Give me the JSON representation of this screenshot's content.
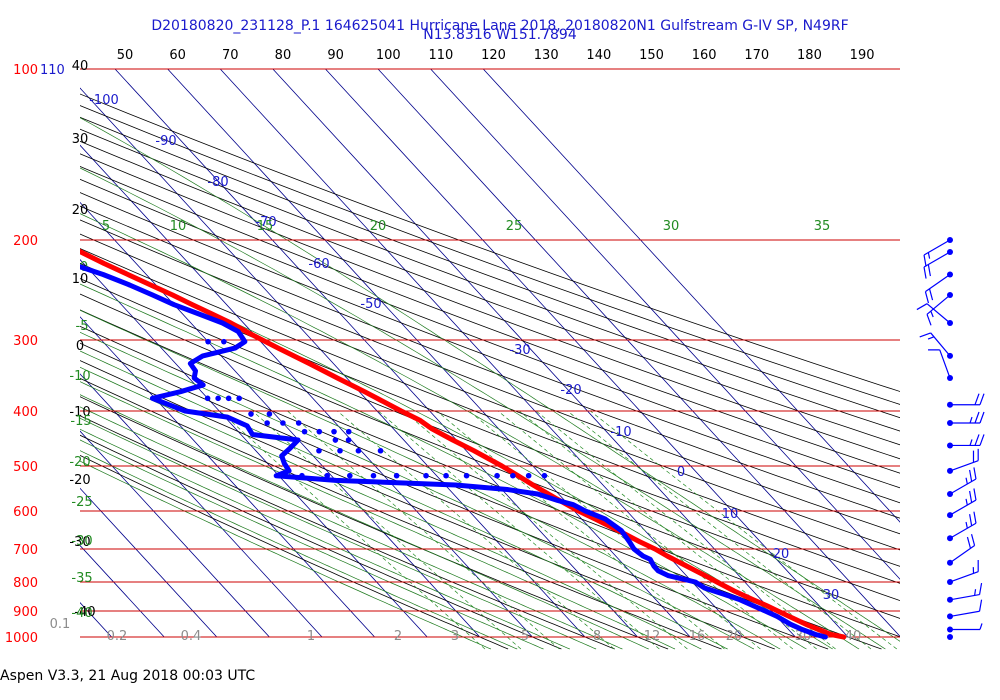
{
  "chart_data": {
    "type": "skew-t",
    "title_line1": "D20180820_231128_P.1 164625041 Hurricane Lane 2018, 20180820N1 Gulfstream G-IV SP, N49RF",
    "title_line2": "N13.8316 W151.7894",
    "colors": {
      "title": "#1a1acc",
      "temperature": "#ff0000",
      "dewpoint": "#0000ff",
      "isobar": "#cc0000",
      "isotherm": "#00008b",
      "dry_adiabat": "#000000",
      "moist_adiabat": "#1e7a1e",
      "mixing_ratio": "#228b22",
      "pressure_label": "#ff0000"
    },
    "top_fahrenheit_ticks": [
      "40",
      "50",
      "60",
      "70",
      "80",
      "90",
      "100",
      "110",
      "120",
      "130",
      "140",
      "150",
      "160",
      "170",
      "180",
      "190"
    ],
    "pressure_levels": [
      {
        "value": 100,
        "label": "100",
        "alt_label": "110"
      },
      {
        "value": 200,
        "label": "200"
      },
      {
        "value": 300,
        "label": "300"
      },
      {
        "value": 400,
        "label": "400"
      },
      {
        "value": 500,
        "label": "500"
      },
      {
        "value": 600,
        "label": "600"
      },
      {
        "value": 700,
        "label": "700"
      },
      {
        "value": 800,
        "label": "800"
      },
      {
        "value": 900,
        "label": "900"
      },
      {
        "value": 1000,
        "label": "1000"
      }
    ],
    "left_temp_labels": [
      "30",
      "20",
      "10",
      "0",
      "-10",
      "-20",
      "-30",
      "-40"
    ],
    "isotherm_labels": [
      "-100",
      "-90",
      "-80",
      "-70",
      "-60",
      "-50",
      "-30",
      "-20",
      "-10",
      "0",
      "10",
      "20",
      "30"
    ],
    "adiabat_labels": [
      "5",
      "10",
      "15",
      "20",
      "25",
      "30",
      "35",
      "0",
      "-5",
      "-10",
      "-15",
      "-20",
      "-25",
      "-30",
      "-35",
      "-40"
    ],
    "mixing_ratio_labels": [
      "0.1",
      "0.2",
      "0.4",
      "1",
      "2",
      "3",
      "5",
      "8",
      "12",
      "16",
      "20",
      "30",
      "40"
    ],
    "temperature_profile": [
      {
        "p": 1000,
        "t": 29.2
      },
      {
        "p": 990,
        "t": 27.2
      },
      {
        "p": 970,
        "t": 25.7
      },
      {
        "p": 950,
        "t": 24.2
      },
      {
        "p": 920,
        "t": 22.4
      },
      {
        "p": 900,
        "t": 21.2
      },
      {
        "p": 880,
        "t": 20.0
      },
      {
        "p": 860,
        "t": 18.5
      },
      {
        "p": 830,
        "t": 16.4
      },
      {
        "p": 800,
        "t": 14.7
      },
      {
        "p": 780,
        "t": 13.6
      },
      {
        "p": 750,
        "t": 11.7
      },
      {
        "p": 720,
        "t": 9.8
      },
      {
        "p": 700,
        "t": 8.7
      },
      {
        "p": 680,
        "t": 7.1
      },
      {
        "p": 650,
        "t": 5.0
      },
      {
        "p": 620,
        "t": 2.6
      },
      {
        "p": 600,
        "t": 0.8
      },
      {
        "p": 570,
        "t": -1.3
      },
      {
        "p": 540,
        "t": -3.3
      },
      {
        "p": 520,
        "t": -4.5
      },
      {
        "p": 500,
        "t": -5.9
      },
      {
        "p": 470,
        "t": -8.5
      },
      {
        "p": 450,
        "t": -10.7
      },
      {
        "p": 430,
        "t": -12.7
      },
      {
        "p": 415,
        "t": -13.5
      },
      {
        "p": 400,
        "t": -15.4
      },
      {
        "p": 370,
        "t": -19.0
      },
      {
        "p": 350,
        "t": -21.8
      },
      {
        "p": 330,
        "t": -24.6
      },
      {
        "p": 310,
        "t": -27.8
      },
      {
        "p": 300,
        "t": -29.4
      },
      {
        "p": 290,
        "t": -31.0
      },
      {
        "p": 280,
        "t": -32.4
      },
      {
        "p": 270,
        "t": -34.4
      },
      {
        "p": 260,
        "t": -36.5
      },
      {
        "p": 250,
        "t": -38.6
      },
      {
        "p": 240,
        "t": -41.0
      },
      {
        "p": 230,
        "t": -43.5
      },
      {
        "p": 220,
        "t": -46.1
      },
      {
        "p": 210,
        "t": -48.5
      },
      {
        "p": 200,
        "t": -51.2
      },
      {
        "p": 190,
        "t": -54.1
      },
      {
        "p": 180,
        "t": -57.7
      }
    ],
    "temperature_top_point": {
      "p": 167,
      "t": -64.3
    },
    "dewpoint_profile": [
      {
        "p": 1000,
        "t": 25.7
      },
      {
        "p": 990,
        "t": 24.3
      },
      {
        "p": 970,
        "t": 22.6
      },
      {
        "p": 950,
        "t": 21.3
      },
      {
        "p": 920,
        "t": 20.1
      },
      {
        "p": 900,
        "t": 18.8
      },
      {
        "p": 880,
        "t": 17.4
      },
      {
        "p": 860,
        "t": 16.0
      },
      {
        "p": 840,
        "t": 13.8
      },
      {
        "p": 820,
        "t": 11.3
      },
      {
        "p": 800,
        "t": 10.6
      },
      {
        "p": 790,
        "t": 8.7
      },
      {
        "p": 780,
        "t": 6.6
      },
      {
        "p": 765,
        "t": 5.5
      },
      {
        "p": 750,
        "t": 5.5
      },
      {
        "p": 730,
        "t": 6.0
      },
      {
        "p": 720,
        "t": 5.2
      },
      {
        "p": 700,
        "t": 4.7
      },
      {
        "p": 680,
        "t": 5.1
      },
      {
        "p": 650,
        "t": 5.5
      },
      {
        "p": 620,
        "t": 4.5
      },
      {
        "p": 600,
        "t": 2.1
      },
      {
        "p": 585,
        "t": 0.9
      },
      {
        "p": 575,
        "t": -1.3
      },
      {
        "p": 560,
        "t": -4.0
      },
      {
        "p": 550,
        "t": -9.0
      },
      {
        "p": 540,
        "t": -18.0
      },
      {
        "p": 530,
        "t": -40.0
      },
      {
        "p": 520,
        "t": -50.5
      },
      {
        "p": 510,
        "t": -47.2
      },
      {
        "p": 495,
        "t": -46.8
      },
      {
        "p": 480,
        "t": -46.0
      },
      {
        "p": 465,
        "t": -43.0
      },
      {
        "p": 450,
        "t": -40.1
      },
      {
        "p": 440,
        "t": -47.8
      },
      {
        "p": 425,
        "t": -47.3
      },
      {
        "p": 410,
        "t": -49.5
      },
      {
        "p": 400,
        "t": -56.5
      },
      {
        "p": 390,
        "t": -58.5
      },
      {
        "p": 380,
        "t": -60.5
      },
      {
        "p": 370,
        "t": -54.0
      },
      {
        "p": 360,
        "t": -48.5
      },
      {
        "p": 350,
        "t": -49.0
      },
      {
        "p": 340,
        "t": -47.5
      },
      {
        "p": 330,
        "t": -47.2
      },
      {
        "p": 320,
        "t": -43.5
      },
      {
        "p": 310,
        "t": -36.0
      },
      {
        "p": 302,
        "t": -33.0
      },
      {
        "p": 290,
        "t": -32.5
      },
      {
        "p": 280,
        "t": -34.0
      },
      {
        "p": 270,
        "t": -36.9
      },
      {
        "p": 260,
        "t": -40.0
      },
      {
        "p": 250,
        "t": -42.4
      },
      {
        "p": 240,
        "t": -45.0
      },
      {
        "p": 230,
        "t": -48.2
      },
      {
        "p": 220,
        "t": -52.5
      },
      {
        "p": 210,
        "t": -57.5
      },
      {
        "p": 203,
        "t": -61.0
      },
      {
        "p": 196,
        "t": -63.8
      },
      {
        "p": 193,
        "t": -63.1
      }
    ],
    "dewpoint_scatter": [
      {
        "p": 520,
        "t": -45.6
      },
      {
        "p": 520,
        "t": -40.8
      },
      {
        "p": 520,
        "t": -36.5
      },
      {
        "p": 520,
        "t": -32.0
      },
      {
        "p": 520,
        "t": -27.6
      },
      {
        "p": 520,
        "t": -22.0
      },
      {
        "p": 520,
        "t": -18.2
      },
      {
        "p": 520,
        "t": -14.3
      },
      {
        "p": 520,
        "t": -8.5
      },
      {
        "p": 520,
        "t": -5.5
      },
      {
        "p": 520,
        "t": -2.5
      },
      {
        "p": 520,
        "t": 0.5
      },
      {
        "p": 470,
        "t": -38.0
      },
      {
        "p": 470,
        "t": -34.0
      },
      {
        "p": 470,
        "t": -30.5
      },
      {
        "p": 470,
        "t": -26.3
      },
      {
        "p": 450,
        "t": -33.0
      },
      {
        "p": 450,
        "t": -30.5
      },
      {
        "p": 435,
        "t": -37.4
      },
      {
        "p": 435,
        "t": -34.6
      },
      {
        "p": 435,
        "t": -31.8
      },
      {
        "p": 435,
        "t": -29.0
      },
      {
        "p": 420,
        "t": -43.0
      },
      {
        "p": 420,
        "t": -40.0
      },
      {
        "p": 420,
        "t": -37.0
      },
      {
        "p": 405,
        "t": -44.5
      },
      {
        "p": 405,
        "t": -41.0
      },
      {
        "p": 380,
        "t": -50.0
      },
      {
        "p": 380,
        "t": -48.0
      },
      {
        "p": 380,
        "t": -46.0
      },
      {
        "p": 380,
        "t": -44.0
      },
      {
        "p": 302,
        "t": -37.0
      },
      {
        "p": 302,
        "t": -40.0
      }
    ],
    "wind_barbs": [
      {
        "p": 200,
        "speed_kt": 15,
        "dir_deg": 240
      },
      {
        "p": 210,
        "speed_kt": 20,
        "dir_deg": 240
      },
      {
        "p": 230,
        "speed_kt": 20,
        "dir_deg": 235
      },
      {
        "p": 250,
        "speed_kt": 15,
        "dir_deg": 230
      },
      {
        "p": 280,
        "speed_kt": 10,
        "dir_deg": 310
      },
      {
        "p": 320,
        "speed_kt": 15,
        "dir_deg": 320
      },
      {
        "p": 350,
        "speed_kt": 10,
        "dir_deg": 340
      },
      {
        "p": 390,
        "speed_kt": 20,
        "dir_deg": 90
      },
      {
        "p": 420,
        "speed_kt": 25,
        "dir_deg": 90
      },
      {
        "p": 460,
        "speed_kt": 25,
        "dir_deg": 90
      },
      {
        "p": 510,
        "speed_kt": 20,
        "dir_deg": 70
      },
      {
        "p": 560,
        "speed_kt": 25,
        "dir_deg": 60
      },
      {
        "p": 610,
        "speed_kt": 25,
        "dir_deg": 60
      },
      {
        "p": 670,
        "speed_kt": 25,
        "dir_deg": 60
      },
      {
        "p": 740,
        "speed_kt": 20,
        "dir_deg": 55
      },
      {
        "p": 800,
        "speed_kt": 15,
        "dir_deg": 70
      },
      {
        "p": 860,
        "speed_kt": 15,
        "dir_deg": 80
      },
      {
        "p": 920,
        "speed_kt": 10,
        "dir_deg": 80
      },
      {
        "p": 970,
        "speed_kt": 5,
        "dir_deg": 90
      },
      {
        "p": 1000,
        "speed_kt": 0,
        "dir_deg": 0
      }
    ]
  },
  "footer": {
    "text": "Aspen V3.3, 21 Aug 2018  00:03 UTC"
  }
}
